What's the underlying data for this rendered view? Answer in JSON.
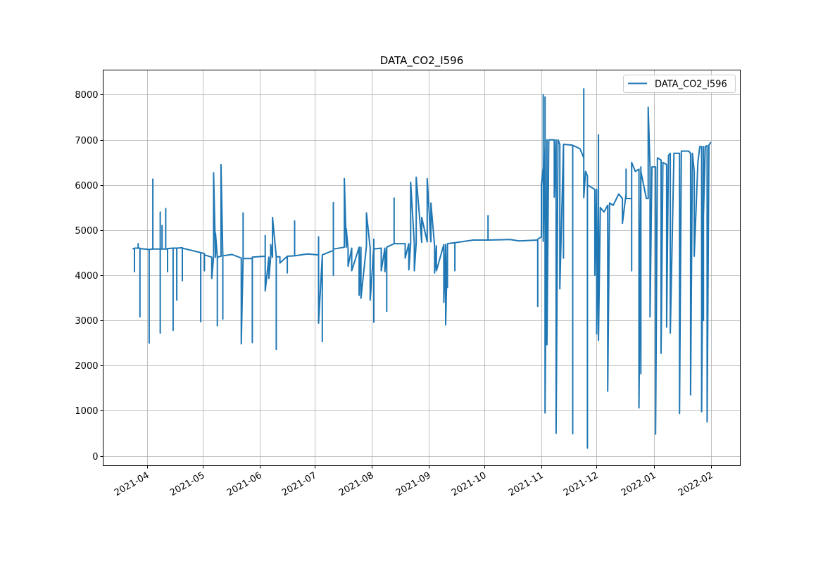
{
  "chart_data": {
    "type": "line",
    "title": "DATA_CO2_I596",
    "xlabel": "",
    "ylabel": "",
    "xlim": [
      "2021-03-08",
      "2022-02-17"
    ],
    "ylim": [
      -218,
      8545
    ],
    "grid": true,
    "legend": "top-right",
    "x_ticks": [
      "2021-04",
      "2021-05",
      "2021-06",
      "2021-07",
      "2021-08",
      "2021-09",
      "2021-10",
      "2021-11",
      "2021-12",
      "2022-01",
      "2022-02"
    ],
    "y_ticks": [
      0,
      1000,
      2000,
      3000,
      4000,
      5000,
      6000,
      7000,
      8000
    ],
    "series": [
      {
        "name": "DATA_CO2_I596",
        "color": "#1f77b4",
        "points": [
          [
            "2021-03-24",
            4580
          ],
          [
            "2021-03-25",
            4600
          ],
          [
            "2021-03-25",
            4080
          ],
          [
            "2021-03-25",
            4600
          ],
          [
            "2021-03-27",
            4600
          ],
          [
            "2021-03-27",
            4700
          ],
          [
            "2021-03-27",
            4600
          ],
          [
            "2021-03-28",
            4600
          ],
          [
            "2021-03-28",
            3080
          ],
          [
            "2021-03-28",
            4590
          ],
          [
            "2021-04-02",
            4570
          ],
          [
            "2021-04-02",
            2500
          ],
          [
            "2021-04-02",
            4570
          ],
          [
            "2021-04-04",
            4580
          ],
          [
            "2021-04-04",
            6130
          ],
          [
            "2021-04-04",
            4580
          ],
          [
            "2021-04-08",
            4580
          ],
          [
            "2021-04-08",
            5400
          ],
          [
            "2021-04-08",
            2720
          ],
          [
            "2021-04-08",
            4580
          ],
          [
            "2021-04-09",
            4580
          ],
          [
            "2021-04-09",
            5100
          ],
          [
            "2021-04-09",
            4580
          ],
          [
            "2021-04-11",
            4580
          ],
          [
            "2021-04-11",
            5480
          ],
          [
            "2021-04-11",
            4580
          ],
          [
            "2021-04-12",
            4580
          ],
          [
            "2021-04-12",
            4080
          ],
          [
            "2021-04-12",
            4590
          ],
          [
            "2021-04-15",
            4600
          ],
          [
            "2021-04-15",
            2780
          ],
          [
            "2021-04-15",
            4600
          ],
          [
            "2021-04-17",
            4600
          ],
          [
            "2021-04-17",
            3450
          ],
          [
            "2021-04-17",
            4600
          ],
          [
            "2021-04-20",
            4610
          ],
          [
            "2021-04-20",
            3880
          ],
          [
            "2021-04-20",
            4600
          ],
          [
            "2021-04-25",
            4550
          ],
          [
            "2021-04-30",
            4500
          ],
          [
            "2021-04-30",
            2970
          ],
          [
            "2021-04-30",
            4500
          ],
          [
            "2021-05-02",
            4480
          ],
          [
            "2021-05-02",
            4100
          ],
          [
            "2021-05-02",
            4450
          ],
          [
            "2021-05-06",
            4400
          ],
          [
            "2021-05-06",
            3930
          ],
          [
            "2021-05-07",
            4400
          ],
          [
            "2021-05-07",
            6270
          ],
          [
            "2021-05-08",
            4400
          ],
          [
            "2021-05-08",
            4930
          ],
          [
            "2021-05-09",
            4400
          ],
          [
            "2021-05-09",
            2880
          ],
          [
            "2021-05-09",
            4400
          ],
          [
            "2021-05-11",
            4420
          ],
          [
            "2021-05-11",
            6450
          ],
          [
            "2021-05-12",
            4420
          ],
          [
            "2021-05-12",
            3030
          ],
          [
            "2021-05-12",
            4430
          ],
          [
            "2021-05-17",
            4460
          ],
          [
            "2021-05-22",
            4380
          ],
          [
            "2021-05-22",
            2480
          ],
          [
            "2021-05-23",
            4380
          ],
          [
            "2021-05-23",
            5380
          ],
          [
            "2021-05-23",
            4370
          ],
          [
            "2021-05-28",
            4370
          ],
          [
            "2021-05-28",
            2510
          ],
          [
            "2021-05-28",
            4400
          ],
          [
            "2021-06-04",
            4420
          ],
          [
            "2021-06-04",
            4880
          ],
          [
            "2021-06-04",
            3650
          ],
          [
            "2021-06-06",
            4400
          ],
          [
            "2021-06-06",
            3930
          ],
          [
            "2021-06-07",
            4400
          ],
          [
            "2021-06-07",
            4680
          ],
          [
            "2021-06-08",
            4400
          ],
          [
            "2021-06-08",
            5280
          ],
          [
            "2021-06-10",
            4410
          ],
          [
            "2021-06-10",
            2360
          ],
          [
            "2021-06-10",
            4410
          ],
          [
            "2021-06-12",
            4410
          ],
          [
            "2021-06-12",
            4270
          ],
          [
            "2021-06-16",
            4420
          ],
          [
            "2021-06-16",
            4050
          ],
          [
            "2021-06-16",
            4420
          ],
          [
            "2021-06-20",
            4430
          ],
          [
            "2021-06-20",
            5200
          ],
          [
            "2021-06-20",
            4430
          ],
          [
            "2021-06-27",
            4470
          ],
          [
            "2021-07-03",
            4450
          ],
          [
            "2021-07-03",
            4850
          ],
          [
            "2021-07-03",
            2940
          ],
          [
            "2021-07-05",
            4440
          ],
          [
            "2021-07-05",
            2530
          ],
          [
            "2021-07-05",
            4450
          ],
          [
            "2021-07-11",
            4550
          ],
          [
            "2021-07-11",
            5610
          ],
          [
            "2021-07-11",
            4000
          ],
          [
            "2021-07-11",
            4580
          ],
          [
            "2021-07-17",
            4620
          ],
          [
            "2021-07-17",
            6140
          ],
          [
            "2021-07-18",
            4620
          ],
          [
            "2021-07-18",
            5030
          ],
          [
            "2021-07-19",
            4600
          ],
          [
            "2021-07-19",
            4200
          ],
          [
            "2021-07-21",
            4600
          ],
          [
            "2021-07-21",
            4100
          ],
          [
            "2021-07-25",
            4620
          ],
          [
            "2021-07-25",
            3560
          ],
          [
            "2021-07-26",
            4620
          ],
          [
            "2021-07-26",
            3490
          ],
          [
            "2021-07-29",
            4650
          ],
          [
            "2021-07-29",
            5380
          ],
          [
            "2021-07-31",
            4600
          ],
          [
            "2021-07-31",
            3450
          ],
          [
            "2021-08-02",
            4600
          ],
          [
            "2021-08-02",
            4800
          ],
          [
            "2021-08-02",
            2960
          ],
          [
            "2021-08-02",
            4580
          ],
          [
            "2021-08-06",
            4600
          ],
          [
            "2021-08-06",
            4100
          ],
          [
            "2021-08-08",
            4600
          ],
          [
            "2021-08-08",
            4080
          ],
          [
            "2021-08-09",
            4620
          ],
          [
            "2021-08-09",
            3200
          ],
          [
            "2021-08-09",
            4620
          ],
          [
            "2021-08-13",
            4700
          ],
          [
            "2021-08-13",
            5710
          ],
          [
            "2021-08-13",
            4700
          ],
          [
            "2021-08-19",
            4700
          ],
          [
            "2021-08-19",
            4380
          ],
          [
            "2021-08-21",
            4700
          ],
          [
            "2021-08-21",
            4120
          ],
          [
            "2021-08-22",
            4700
          ],
          [
            "2021-08-22",
            6060
          ],
          [
            "2021-08-24",
            4700
          ],
          [
            "2021-08-24",
            4100
          ],
          [
            "2021-08-25",
            4720
          ],
          [
            "2021-08-25",
            6170
          ],
          [
            "2021-08-28",
            4730
          ],
          [
            "2021-08-28",
            5280
          ],
          [
            "2021-08-31",
            4740
          ],
          [
            "2021-08-31",
            6140
          ],
          [
            "2021-09-02",
            4740
          ],
          [
            "2021-09-02",
            5600
          ],
          [
            "2021-09-04",
            4650
          ],
          [
            "2021-09-04",
            4050
          ],
          [
            "2021-09-05",
            4650
          ],
          [
            "2021-09-05",
            4100
          ],
          [
            "2021-09-09",
            4680
          ],
          [
            "2021-09-09",
            3400
          ],
          [
            "2021-09-10",
            4680
          ],
          [
            "2021-09-10",
            2900
          ],
          [
            "2021-09-11",
            4680
          ],
          [
            "2021-09-11",
            3730
          ],
          [
            "2021-09-11",
            4700
          ],
          [
            "2021-09-15",
            4720
          ],
          [
            "2021-09-15",
            4100
          ],
          [
            "2021-09-15",
            4720
          ],
          [
            "2021-09-25",
            4780
          ],
          [
            "2021-10-03",
            4780
          ],
          [
            "2021-10-03",
            5320
          ],
          [
            "2021-10-03",
            4780
          ],
          [
            "2021-10-15",
            4790
          ],
          [
            "2021-10-20",
            4760
          ],
          [
            "2021-10-30",
            4780
          ],
          [
            "2021-10-30",
            3310
          ],
          [
            "2021-10-30",
            4800
          ],
          [
            "2021-11-01",
            4850
          ],
          [
            "2021-11-01",
            6000
          ],
          [
            "2021-11-02",
            6400
          ],
          [
            "2021-11-02",
            8000
          ],
          [
            "2021-11-02",
            4750
          ],
          [
            "2021-11-03",
            6900
          ],
          [
            "2021-11-03",
            7950
          ],
          [
            "2021-11-03",
            950
          ],
          [
            "2021-11-04",
            7000
          ],
          [
            "2021-11-04",
            2460
          ],
          [
            "2021-11-05",
            7000
          ],
          [
            "2021-11-08",
            7000
          ],
          [
            "2021-11-08",
            5730
          ],
          [
            "2021-11-09",
            7000
          ],
          [
            "2021-11-09",
            500
          ],
          [
            "2021-11-10",
            7000
          ],
          [
            "2021-11-11",
            6900
          ],
          [
            "2021-11-11",
            3700
          ],
          [
            "2021-11-13",
            6900
          ],
          [
            "2021-11-13",
            4380
          ],
          [
            "2021-11-13",
            6900
          ],
          [
            "2021-11-18",
            6880
          ],
          [
            "2021-11-18",
            490
          ],
          [
            "2021-11-18",
            6880
          ],
          [
            "2021-11-22",
            6800
          ],
          [
            "2021-11-24",
            6600
          ],
          [
            "2021-11-24",
            8130
          ],
          [
            "2021-11-24",
            5720
          ],
          [
            "2021-11-25",
            6300
          ],
          [
            "2021-11-26",
            6200
          ],
          [
            "2021-11-26",
            170
          ],
          [
            "2021-11-26",
            6000
          ],
          [
            "2021-11-30",
            5900
          ],
          [
            "2021-11-30",
            4000
          ],
          [
            "2021-12-01",
            5900
          ],
          [
            "2021-12-01",
            2700
          ],
          [
            "2021-12-02",
            5600
          ],
          [
            "2021-12-02",
            7110
          ],
          [
            "2021-12-02",
            2560
          ],
          [
            "2021-12-03",
            5500
          ],
          [
            "2021-12-05",
            5400
          ],
          [
            "2021-12-07",
            5550
          ],
          [
            "2021-12-07",
            1430
          ],
          [
            "2021-12-08",
            5600
          ],
          [
            "2021-12-10",
            5550
          ],
          [
            "2021-12-13",
            5800
          ],
          [
            "2021-12-15",
            5700
          ],
          [
            "2021-12-15",
            5150
          ],
          [
            "2021-12-17",
            5800
          ],
          [
            "2021-12-17",
            6350
          ],
          [
            "2021-12-17",
            5700
          ],
          [
            "2021-12-20",
            5700
          ],
          [
            "2021-12-20",
            4100
          ],
          [
            "2021-12-20",
            6500
          ],
          [
            "2021-12-22",
            6300
          ],
          [
            "2021-12-24",
            6350
          ],
          [
            "2021-12-24",
            1060
          ],
          [
            "2021-12-25",
            6400
          ],
          [
            "2021-12-25",
            1820
          ],
          [
            "2021-12-25",
            6300
          ],
          [
            "2021-12-28",
            5700
          ],
          [
            "2021-12-29",
            5700
          ],
          [
            "2021-12-29",
            7720
          ],
          [
            "2021-12-30",
            6400
          ],
          [
            "2021-12-30",
            3080
          ],
          [
            "2021-12-31",
            6400
          ],
          [
            "2022-01-02",
            6400
          ],
          [
            "2022-01-02",
            480
          ],
          [
            "2022-01-03",
            6600
          ],
          [
            "2022-01-05",
            6550
          ],
          [
            "2022-01-05",
            2270
          ],
          [
            "2022-01-06",
            6500
          ],
          [
            "2022-01-08",
            6450
          ],
          [
            "2022-01-08",
            2850
          ],
          [
            "2022-01-09",
            6650
          ],
          [
            "2022-01-10",
            6700
          ],
          [
            "2022-01-10",
            2720
          ],
          [
            "2022-01-12",
            6700
          ],
          [
            "2022-01-15",
            6700
          ],
          [
            "2022-01-15",
            2700
          ],
          [
            "2022-01-15",
            940
          ],
          [
            "2022-01-16",
            6750
          ],
          [
            "2022-01-20",
            6750
          ],
          [
            "2022-01-21",
            6700
          ],
          [
            "2022-01-21",
            1350
          ],
          [
            "2022-01-22",
            6700
          ],
          [
            "2022-01-23",
            6300
          ],
          [
            "2022-01-23",
            4420
          ],
          [
            "2022-01-25",
            6500
          ],
          [
            "2022-01-26",
            6850
          ],
          [
            "2022-01-27",
            6850
          ],
          [
            "2022-01-27",
            980
          ],
          [
            "2022-01-28",
            6850
          ],
          [
            "2022-01-28",
            3000
          ],
          [
            "2022-01-28",
            5300
          ],
          [
            "2022-01-29",
            6850
          ],
          [
            "2022-01-30",
            6870
          ],
          [
            "2022-01-30",
            750
          ],
          [
            "2022-01-31",
            6880
          ],
          [
            "2022-02-01",
            6950
          ]
        ]
      }
    ]
  }
}
